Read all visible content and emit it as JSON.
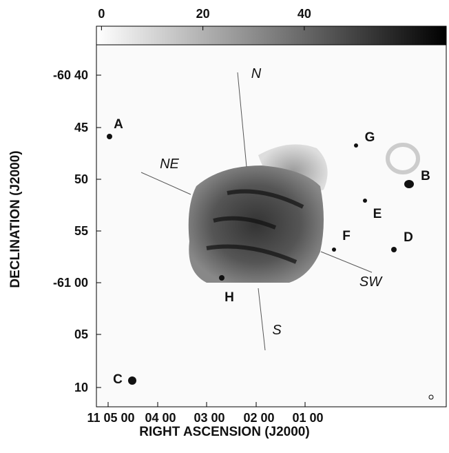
{
  "colorbar": {
    "ticks": [
      0,
      20,
      40
    ],
    "lim": [
      -1,
      68
    ]
  },
  "y_axis": {
    "label": "DECLINATION (J2000)",
    "ticks": [
      "-60 40",
      "45",
      "50",
      "55",
      "-61 00",
      "05",
      "10"
    ]
  },
  "x_axis": {
    "label": "RIGHT ASCENSION (J2000)",
    "ticks": [
      "11 05 00",
      "04 00",
      "03 00",
      "02 00",
      "01 00"
    ]
  },
  "sources": [
    "A",
    "B",
    "C",
    "D",
    "E",
    "F",
    "G",
    "H"
  ],
  "directions": [
    "N",
    "NE",
    "S",
    "SW"
  ]
}
